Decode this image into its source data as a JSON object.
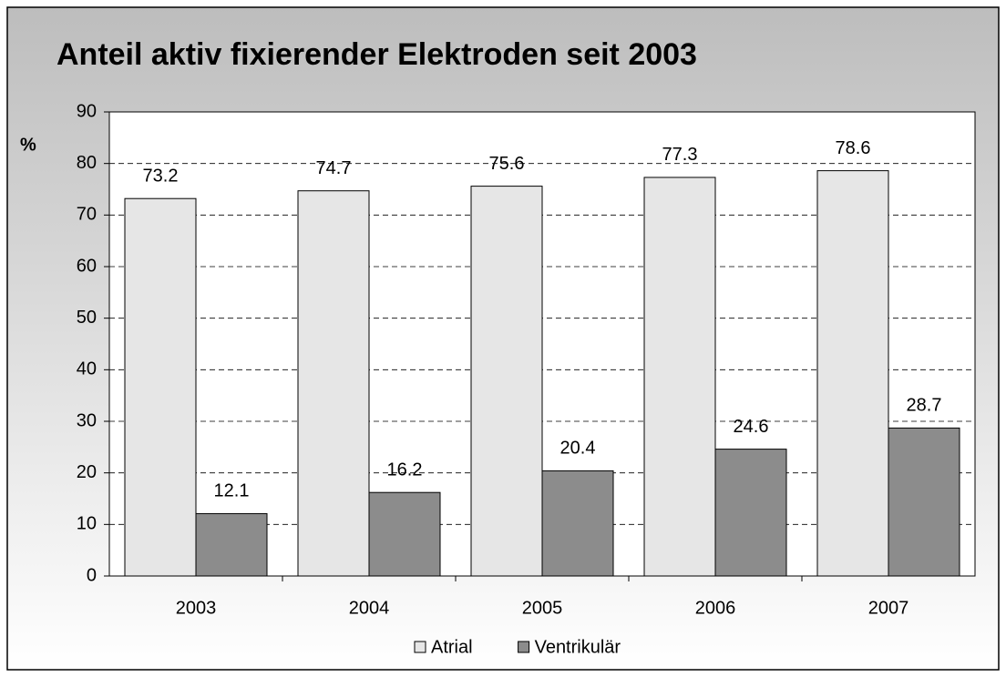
{
  "chart_data": {
    "type": "bar",
    "title": "Anteil aktiv fixierender Elektroden seit 2003",
    "y_label": "%",
    "categories": [
      "2003",
      "2004",
      "2005",
      "2006",
      "2007"
    ],
    "series": [
      {
        "name": "Atrial",
        "color": "#e6e6e6",
        "values": [
          73.2,
          74.7,
          75.6,
          77.3,
          78.6
        ]
      },
      {
        "name": "Ventrikulär",
        "color": "#8c8c8c",
        "values": [
          12.1,
          16.2,
          20.4,
          24.6,
          28.7
        ]
      }
    ],
    "ylim": [
      0,
      90
    ],
    "yticks": [
      0,
      10,
      20,
      30,
      40,
      50,
      60,
      70,
      80,
      90
    ],
    "grid": true,
    "legend": "bottom"
  }
}
